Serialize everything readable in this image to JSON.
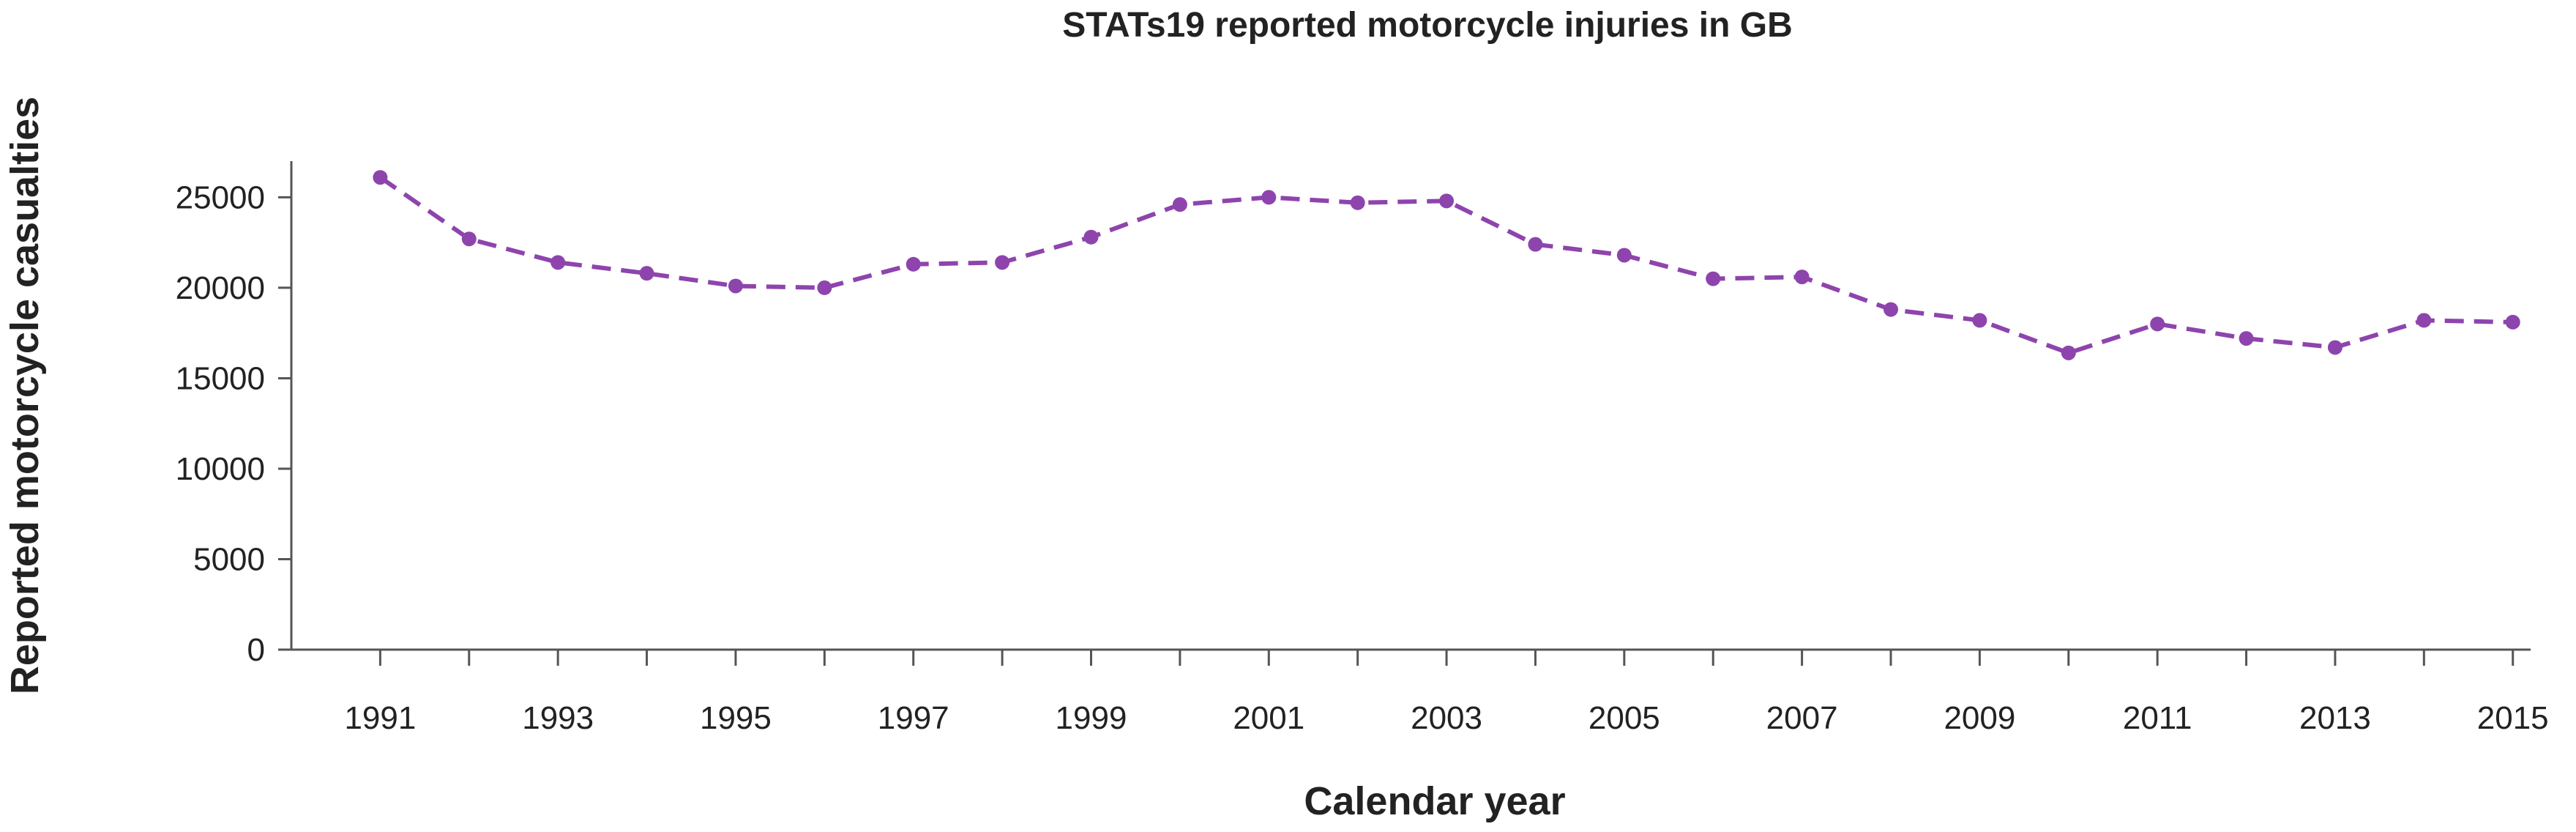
{
  "chart_data": {
    "type": "line",
    "title": "STATs19 reported motorcycle injuries in GB",
    "xlabel": "Calendar year",
    "ylabel": "Reported motorcycle casualties",
    "x": [
      1991,
      1992,
      1993,
      1994,
      1995,
      1996,
      1997,
      1998,
      1999,
      2000,
      2001,
      2002,
      2003,
      2004,
      2005,
      2006,
      2007,
      2008,
      2009,
      2010,
      2011,
      2012,
      2013,
      2014,
      2015
    ],
    "x_tick_labels": [
      "1991",
      "1993",
      "1995",
      "1997",
      "1999",
      "2001",
      "2003",
      "2005",
      "2007",
      "2009",
      "2011",
      "2013",
      "2015"
    ],
    "y_tick_labels": [
      "0",
      "5000",
      "10000",
      "15000",
      "20000",
      "25000"
    ],
    "ylim": [
      0,
      27000
    ],
    "xlim": [
      1990,
      2015.2
    ],
    "grid": false,
    "legend": "none",
    "series": [
      {
        "color": "#8e44ad",
        "line_style": "dashed",
        "marker": "circle",
        "values": [
          26100,
          22700,
          21400,
          20800,
          20100,
          20000,
          21300,
          21400,
          22800,
          24600,
          25000,
          24700,
          24800,
          22400,
          21800,
          20500,
          20600,
          18800,
          18200,
          16400,
          18000,
          17200,
          16700,
          18200,
          18100
        ]
      }
    ]
  }
}
